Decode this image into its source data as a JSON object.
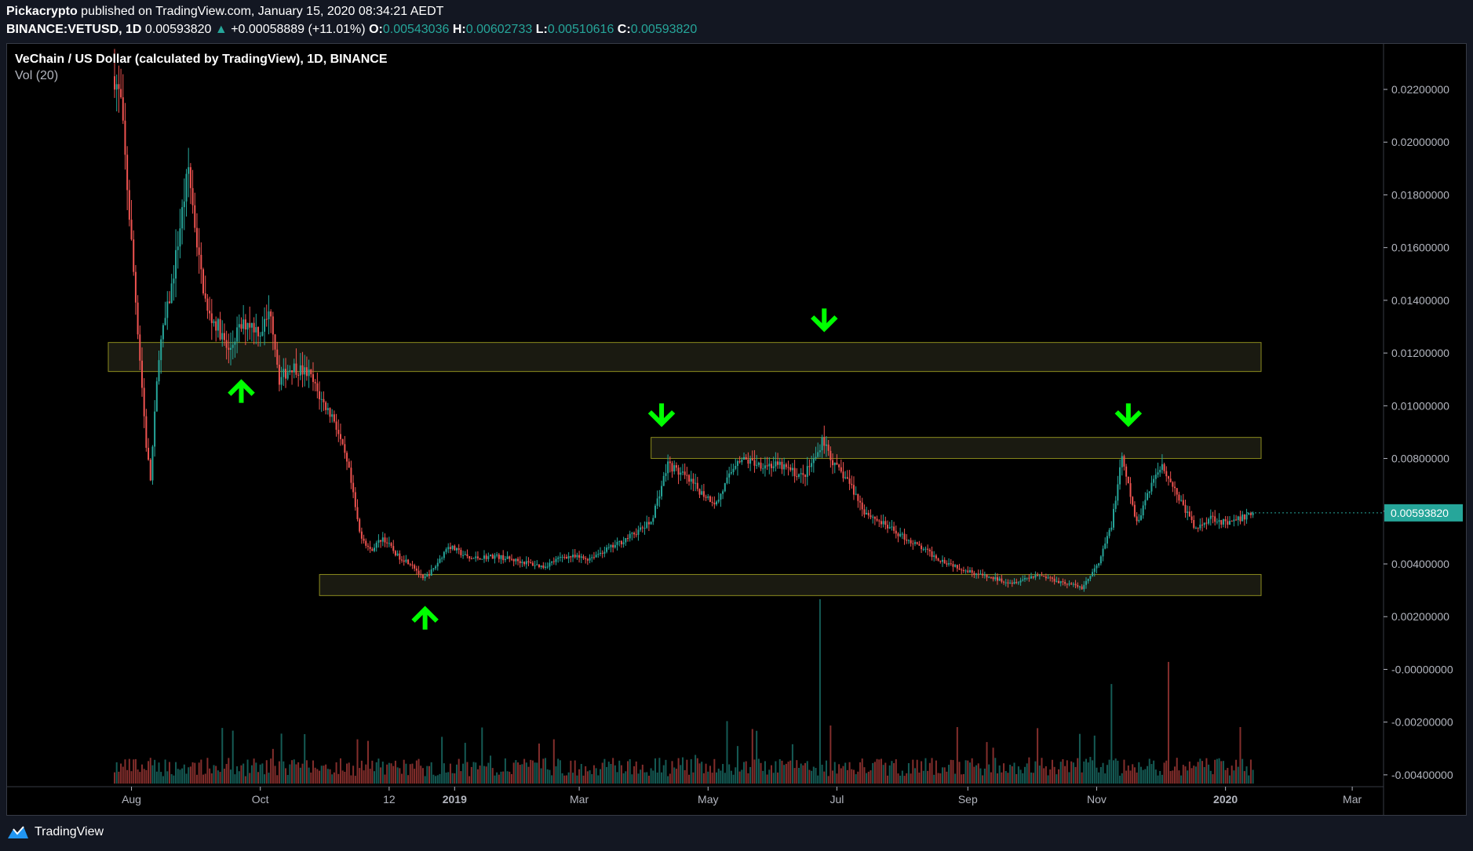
{
  "header": {
    "author": "Pickacrypto",
    "published_text": "published on TradingView.com, January 15, 2020 08:34:21 AEDT",
    "symbol": "BINANCE:VETUSD, 1D",
    "last": "0.00593820",
    "change_arrow": "▲",
    "change": "+0.00058889 (+11.01%)",
    "o_label": "O:",
    "o_value": "0.00543036",
    "h_label": "H:",
    "h_value": "0.00602733",
    "l_label": "L:",
    "l_value": "0.00510616",
    "c_label": "C:",
    "c_value": "0.00593820"
  },
  "legend": {
    "title": "VeChain / US Dollar (calculated by TradingView), 1D, BINANCE",
    "volume": "Vol (20)"
  },
  "footer": {
    "brand": "TradingView",
    "logo_icon": "tradingview-logo-icon"
  },
  "colors": {
    "up": "#26a69a",
    "down": "#ef5350",
    "arrow": "#00ff00",
    "zone_border": "#8c8c1e",
    "zone_fill": "#1e1e14",
    "price_tag": "#26a69a"
  },
  "chart_data": {
    "type": "candlestick",
    "title": "VeChain / US Dollar (calculated by TradingView), 1D, BINANCE",
    "x_ticks": [
      "Aug",
      "Oct",
      "12",
      "2019",
      "Mar",
      "May",
      "Jul",
      "Sep",
      "Nov",
      "2020",
      "Mar"
    ],
    "y_ticks": [
      "0.02200000",
      "0.02000000",
      "0.01800000",
      "0.01600000",
      "0.01400000",
      "0.01200000",
      "0.01000000",
      "0.00800000",
      "0.00600000",
      "0.00400000",
      "0.00200000",
      "-0.00000000",
      "-0.00200000",
      "-0.00400000"
    ],
    "y_values": [
      0.022,
      0.02,
      0.018,
      0.016,
      0.014,
      0.012,
      0.01,
      0.008,
      0.006,
      0.004,
      0.002,
      0.0,
      -0.002,
      -0.004
    ],
    "last_price_label": "0.00593820",
    "last_price": 0.0059382,
    "price_path": {
      "dates": [
        "2018-07-24",
        "2018-07-27",
        "2018-08-03",
        "2018-08-08",
        "2018-08-10",
        "2018-08-14",
        "2018-08-20",
        "2018-08-24",
        "2018-08-28",
        "2018-09-02",
        "2018-09-06",
        "2018-09-11",
        "2018-09-16",
        "2018-09-20",
        "2018-09-25",
        "2018-10-01",
        "2018-10-06",
        "2018-10-10",
        "2018-10-16",
        "2018-10-24",
        "2018-10-30",
        "2018-11-05",
        "2018-11-12",
        "2018-11-17",
        "2018-11-22",
        "2018-11-28",
        "2018-12-05",
        "2018-12-12",
        "2018-12-17",
        "2018-12-22",
        "2018-12-29",
        "2019-01-08",
        "2019-01-20",
        "2019-02-01",
        "2019-02-12",
        "2019-02-22",
        "2019-03-05",
        "2019-03-18",
        "2019-03-30",
        "2019-04-04",
        "2019-04-12",
        "2019-04-20",
        "2019-04-28",
        "2019-05-05",
        "2019-05-15",
        "2019-05-25",
        "2019-06-05",
        "2019-06-15",
        "2019-06-22",
        "2019-06-24",
        "2019-06-30",
        "2019-07-06",
        "2019-07-14",
        "2019-07-25",
        "2019-08-06",
        "2019-08-18",
        "2019-08-30",
        "2019-09-10",
        "2019-09-22",
        "2019-10-04",
        "2019-10-16",
        "2019-10-25",
        "2019-11-02",
        "2019-11-08",
        "2019-11-13",
        "2019-11-20",
        "2019-11-26",
        "2019-12-02",
        "2019-12-08",
        "2019-12-18",
        "2019-12-25",
        "2020-01-02",
        "2020-01-14"
      ],
      "closes": [
        0.0225,
        0.0215,
        0.014,
        0.0085,
        0.0072,
        0.012,
        0.0145,
        0.0168,
        0.019,
        0.0155,
        0.0135,
        0.013,
        0.012,
        0.0128,
        0.0132,
        0.0128,
        0.0136,
        0.011,
        0.0115,
        0.0112,
        0.0102,
        0.0095,
        0.0075,
        0.0052,
        0.0045,
        0.005,
        0.0043,
        0.004,
        0.0034,
        0.0038,
        0.0047,
        0.0042,
        0.0043,
        0.0041,
        0.0039,
        0.0043,
        0.0042,
        0.0047,
        0.0053,
        0.0056,
        0.0078,
        0.0073,
        0.0067,
        0.0063,
        0.008,
        0.0078,
        0.0077,
        0.0073,
        0.0082,
        0.0088,
        0.0077,
        0.0072,
        0.006,
        0.0054,
        0.0048,
        0.0042,
        0.0038,
        0.0035,
        0.0033,
        0.0036,
        0.0033,
        0.0031,
        0.004,
        0.0055,
        0.008,
        0.0055,
        0.0069,
        0.0078,
        0.0068,
        0.0053,
        0.0058,
        0.0055,
        0.0059382
      ]
    },
    "zones": [
      {
        "from": "2018-07-24",
        "to": "2020-01-16",
        "low": 0.0113,
        "high": 0.0124
      },
      {
        "from": "2019-04-07",
        "to": "2020-01-16",
        "low": 0.008,
        "high": 0.0088
      },
      {
        "from": "2018-11-01",
        "to": "2020-01-16",
        "low": 0.0028,
        "high": 0.0036
      }
    ],
    "arrows": [
      {
        "date": "2018-09-22",
        "price": 0.0113,
        "direction": "up"
      },
      {
        "date": "2018-12-18",
        "price": 0.0027,
        "direction": "up"
      },
      {
        "date": "2019-04-09",
        "price": 0.0089,
        "direction": "down"
      },
      {
        "date": "2019-06-25",
        "price": 0.0125,
        "direction": "down"
      },
      {
        "date": "2019-11-16",
        "price": 0.0089,
        "direction": "down"
      }
    ],
    "volume_spikes": [
      {
        "date": "2019-06-23",
        "value": 1.0
      },
      {
        "date": "2019-12-05",
        "value": 0.66
      },
      {
        "date": "2019-11-08",
        "value": 0.54
      }
    ]
  }
}
